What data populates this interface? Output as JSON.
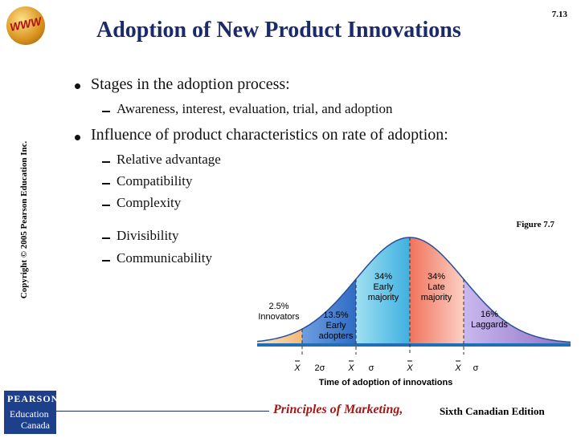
{
  "logo": "WWW",
  "page_number": "7.13",
  "title": "Adoption of New Product Innovations",
  "copyright": "Copyright © 2005 Pearson Education Inc.",
  "bullets": [
    {
      "text": "Stages in the adoption process:",
      "subitems": [
        "Awareness, interest, evaluation, trial, and adoption"
      ]
    },
    {
      "text": "Influence of product characteristics on rate of adoption:",
      "subitems": [
        "Relative advantage",
        "Compatibility",
        "Complexity",
        "Divisibility",
        "Communicability"
      ]
    }
  ],
  "figure": {
    "label": "Figure 7.7",
    "segments": [
      {
        "percent": "2.5%",
        "name": [
          "Innovators"
        ]
      },
      {
        "percent": "13.5%",
        "name": [
          "Early",
          "adopters"
        ]
      },
      {
        "percent": "34%",
        "name": [
          "Early",
          "majority"
        ]
      },
      {
        "percent": "34%",
        "name": [
          "Late",
          "majority"
        ]
      },
      {
        "percent": "16%",
        "name": [
          "Laggards"
        ]
      }
    ],
    "axis_ticks": [
      {
        "mean": "X",
        "offset": "2σ"
      },
      {
        "mean": "X",
        "offset": "σ"
      },
      {
        "mean": "X"
      },
      {
        "mean": "X",
        "offset": "σ"
      }
    ],
    "axis_title": "Time of adoption of innovations"
  },
  "footer": {
    "book": "Principles of Marketing,",
    "edition": "Sixth Canadian Edition"
  },
  "publisher": {
    "name": "PEARSON",
    "line1": "Education",
    "line2": "Canada"
  }
}
